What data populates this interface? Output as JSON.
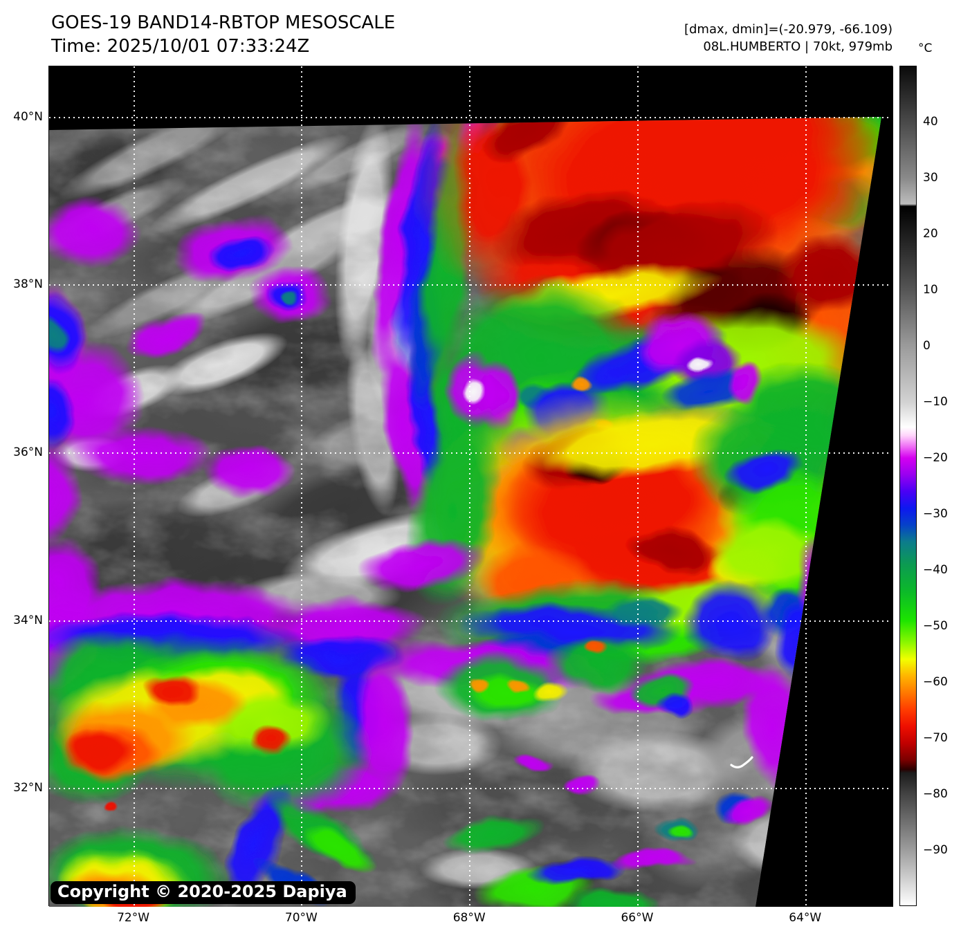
{
  "header": {
    "title": "GOES-19 BAND14-RBTOP MESOSCALE",
    "time": "Time: 2025/10/01 07:33:24Z",
    "dmax_dmin": "[dmax, dmin]=(-20.979, -66.109)",
    "storm": "08L.HUMBERTO | 70kt, 979mb"
  },
  "map": {
    "copyright": "Copyright © 2020-2025 Dapiya",
    "lat_axis": {
      "max": 40.61,
      "min": 30.59,
      "ticks": [
        {
          "value": 40,
          "label": "40°N"
        },
        {
          "value": 38,
          "label": "38°N"
        },
        {
          "value": 36,
          "label": "36°N"
        },
        {
          "value": 34,
          "label": "34°N"
        },
        {
          "value": 32,
          "label": "32°N"
        }
      ]
    },
    "lon_axis": {
      "min": -73.01,
      "max": -62.96,
      "ticks": [
        {
          "value": -72,
          "label": "72°W"
        },
        {
          "value": -70,
          "label": "70°W"
        },
        {
          "value": -68,
          "label": "68°W"
        },
        {
          "value": -66,
          "label": "66°W"
        },
        {
          "value": -64,
          "label": "64°W"
        }
      ]
    }
  },
  "colorbar": {
    "unit": "°C",
    "vmax": 50,
    "vmin": -100,
    "ticks": [
      {
        "value": 40,
        "label": "40"
      },
      {
        "value": 30,
        "label": "30"
      },
      {
        "value": 20,
        "label": "20"
      },
      {
        "value": 10,
        "label": "10"
      },
      {
        "value": 0,
        "label": "0"
      },
      {
        "value": -10,
        "label": "−10"
      },
      {
        "value": -20,
        "label": "−20"
      },
      {
        "value": -30,
        "label": "−30"
      },
      {
        "value": -40,
        "label": "−40"
      },
      {
        "value": -50,
        "label": "−50"
      },
      {
        "value": -60,
        "label": "−60"
      },
      {
        "value": -70,
        "label": "−70"
      },
      {
        "value": -80,
        "label": "−80"
      },
      {
        "value": -90,
        "label": "−90"
      }
    ],
    "stops": [
      [
        50,
        "#0a0a0a"
      ],
      [
        40,
        "#4a4a4a"
      ],
      [
        30,
        "#8a8a8a"
      ],
      [
        25.4,
        "#bdbdbd"
      ],
      [
        25,
        "#000000"
      ],
      [
        10,
        "#565656"
      ],
      [
        0,
        "#9b9b9b"
      ],
      [
        -10,
        "#d2d2d2"
      ],
      [
        -14.5,
        "#ffffff"
      ],
      [
        -16,
        "#ffd4fb"
      ],
      [
        -18,
        "#ef6cf5"
      ],
      [
        -20,
        "#d400f0"
      ],
      [
        -23,
        "#9900f0"
      ],
      [
        -26,
        "#4a00f5"
      ],
      [
        -29,
        "#0d18f0"
      ],
      [
        -32,
        "#0642c8"
      ],
      [
        -35,
        "#0c7c8c"
      ],
      [
        -39,
        "#0c9a52"
      ],
      [
        -44,
        "#0cba28"
      ],
      [
        -49,
        "#1ce400"
      ],
      [
        -53,
        "#8cf700"
      ],
      [
        -56,
        "#f2ff00"
      ],
      [
        -59,
        "#ffb400"
      ],
      [
        -62,
        "#ff7800"
      ],
      [
        -65,
        "#ff3c00"
      ],
      [
        -68,
        "#ee0f00"
      ],
      [
        -71,
        "#c00000"
      ],
      [
        -74,
        "#7a0000"
      ],
      [
        -75.7,
        "#2b0000"
      ],
      [
        -76.3,
        "#1c1c1c"
      ],
      [
        -80,
        "#424242"
      ],
      [
        -85,
        "#6f6f6f"
      ],
      [
        -90,
        "#9c9c9c"
      ],
      [
        -95,
        "#cdcdcd"
      ],
      [
        -100,
        "#ffffff"
      ]
    ]
  }
}
